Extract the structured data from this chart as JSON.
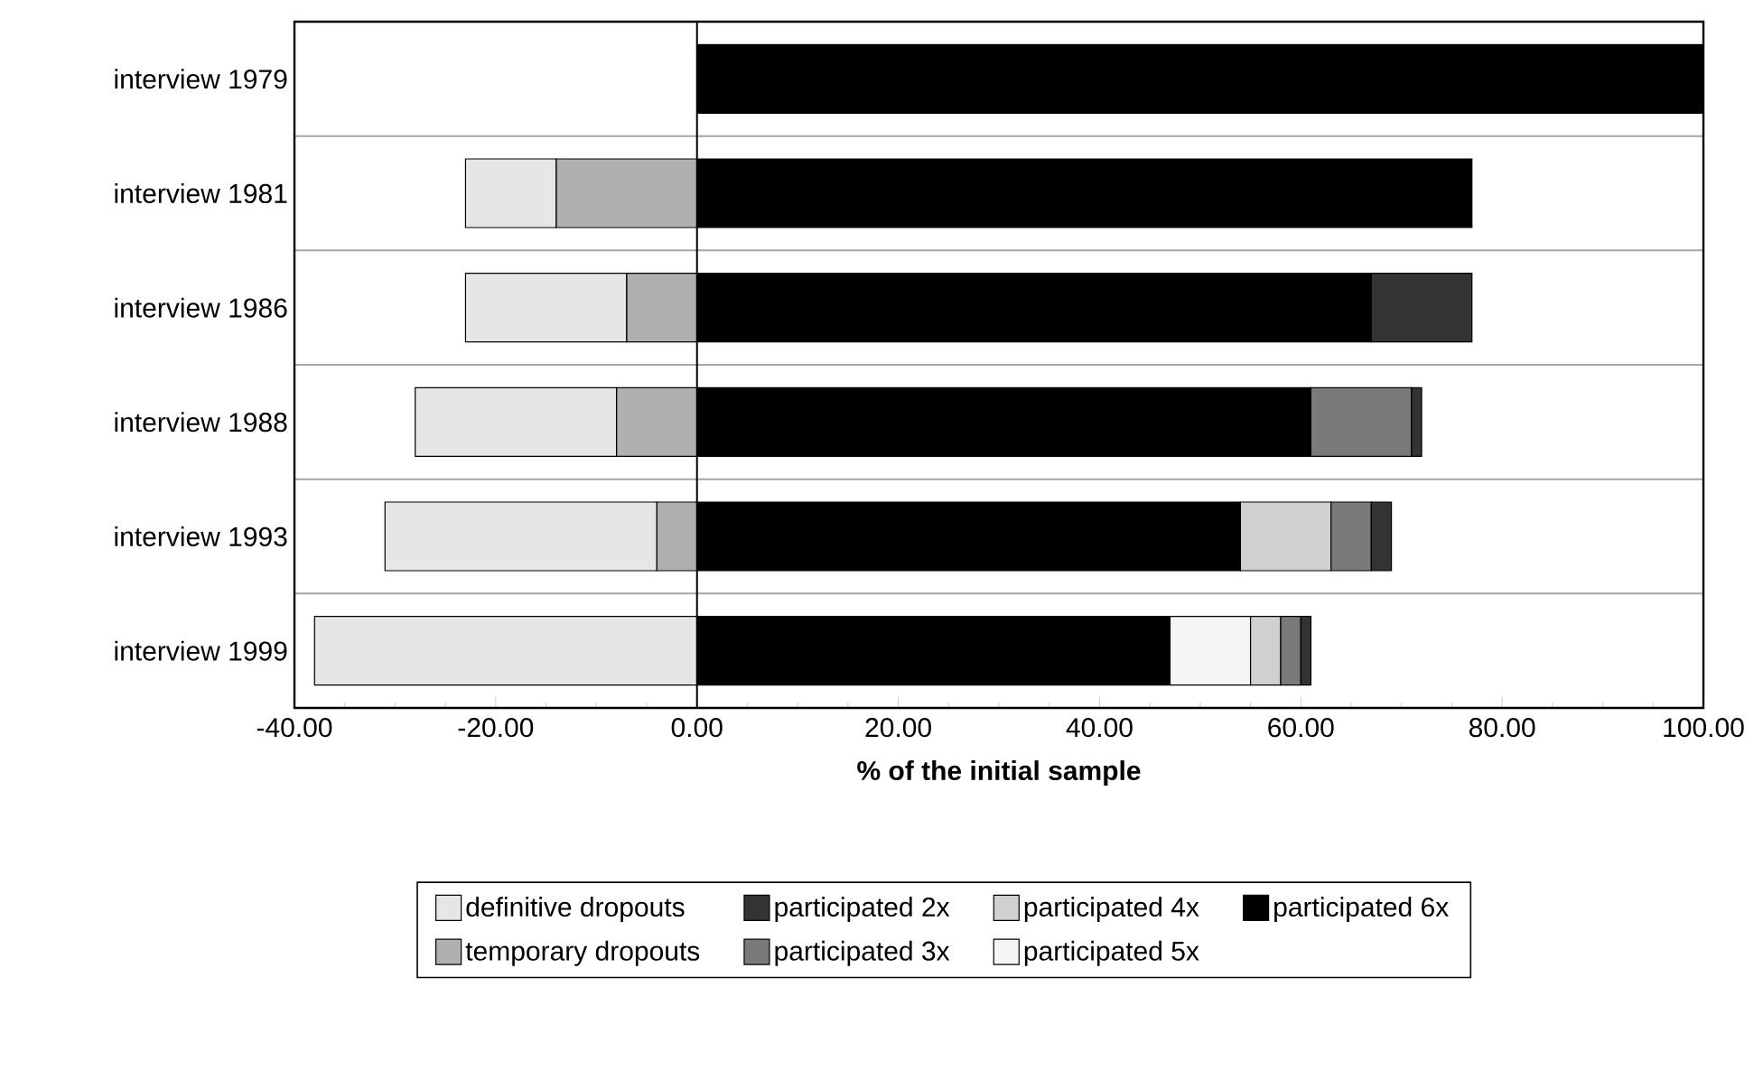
{
  "chart_data": {
    "type": "bar",
    "orientation": "horizontal",
    "stacked": true,
    "xlabel": "% of the initial sample",
    "categories": [
      "interview 1979",
      "interview 1981",
      "interview 1986",
      "interview 1988",
      "interview 1993",
      "interview 1999"
    ],
    "series": [
      {
        "name": "temporary dropouts",
        "color": "#b0b0b0",
        "values": [
          0,
          -14,
          -7,
          -8,
          -4,
          0
        ]
      },
      {
        "name": "definitive dropouts",
        "color": "#e6e6e6",
        "values": [
          0,
          -9,
          -16,
          -20,
          -27,
          -38
        ]
      },
      {
        "name": "participated 6x",
        "color": "#000000",
        "values": [
          100,
          77,
          67,
          61,
          54,
          47
        ]
      },
      {
        "name": "participated 5x",
        "color": "#f5f5f5",
        "values": [
          0,
          0,
          0,
          0,
          0,
          8
        ]
      },
      {
        "name": "participated 4x",
        "color": "#d0d0d0",
        "values": [
          0,
          0,
          0,
          0,
          9,
          3
        ]
      },
      {
        "name": "participated 3x",
        "color": "#7a7a7a",
        "values": [
          0,
          0,
          0,
          10,
          4,
          2
        ]
      },
      {
        "name": "participated 2x",
        "color": "#333333",
        "values": [
          0,
          0,
          10,
          1,
          2,
          1
        ]
      }
    ],
    "xlim": [
      -40,
      100
    ],
    "xticks": [
      {
        "value": -40,
        "label": "-40.00"
      },
      {
        "value": -20,
        "label": "-20.00"
      },
      {
        "value": 0,
        "label": "0.00"
      },
      {
        "value": 20,
        "label": "20.00"
      },
      {
        "value": 40,
        "label": "40.00"
      },
      {
        "value": 60,
        "label": "60.00"
      },
      {
        "value": 80,
        "label": "80.00"
      },
      {
        "value": 100,
        "label": "100.00"
      }
    ],
    "grid": "y",
    "legend": "bottom"
  }
}
